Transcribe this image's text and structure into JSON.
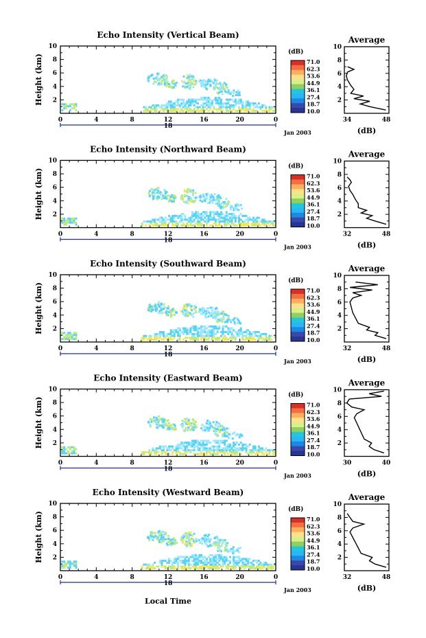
{
  "figure": {
    "x_axis_title": "Local Time",
    "date_label": "Jan 2003",
    "avg_title": "Average",
    "avg_unit": "(dB)",
    "colorbar_unit": "(dB)",
    "colorbar_ticks": [
      "71.0",
      "62.3",
      "53.6",
      "44.9",
      "36.1",
      "27.4",
      "18.7",
      "10.0"
    ],
    "colorbar_colors": [
      "#d73027",
      "#f46d43",
      "#fdae61",
      "#fee08b",
      "#d9ef8b",
      "#91cf60",
      "#26c6da",
      "#29b6f6",
      "#1e88e5",
      "#3949ab",
      "#283593"
    ],
    "echo_colors": {
      "low": "#9be7ff",
      "mid": "#5ad2f0",
      "green": "#b8e986",
      "yellow": "#f2e85a"
    }
  },
  "chart_data": [
    {
      "type": "heatmap",
      "title": "Echo Intensity (Vertical Beam)",
      "ylabel": "Height (km)",
      "xlim": [
        0,
        24
      ],
      "ylim": [
        0,
        10
      ],
      "x_ticks": [
        "0",
        "4",
        "8",
        "12",
        "16",
        "20",
        "0"
      ],
      "y_ticks": [
        "2",
        "4",
        "6",
        "8",
        "10"
      ],
      "day_label": "18",
      "clim": [
        10.0,
        71.0
      ],
      "average": {
        "xlim": [
          34,
          48
        ],
        "x_ticks": [
          "34",
          "48"
        ],
        "profile": [
          [
            47,
            0.5
          ],
          [
            42,
            1
          ],
          [
            39,
            1.4
          ],
          [
            42,
            1.8
          ],
          [
            37,
            2.2
          ],
          [
            40,
            2.6
          ],
          [
            36,
            3
          ],
          [
            37,
            3.6
          ],
          [
            36,
            4.2
          ],
          [
            35,
            5
          ],
          [
            34.6,
            5.6
          ],
          [
            35,
            6.2
          ],
          [
            37,
            6.6
          ],
          [
            35,
            7
          ]
        ]
      }
    },
    {
      "type": "heatmap",
      "title": "Echo Intensity (Northward Beam)",
      "ylabel": "Height (km)",
      "xlim": [
        0,
        24
      ],
      "ylim": [
        0,
        10
      ],
      "x_ticks": [
        "0",
        "4",
        "8",
        "12",
        "16",
        "20",
        "0"
      ],
      "y_ticks": [
        "2",
        "4",
        "6",
        "8",
        "10"
      ],
      "day_label": "18",
      "clim": [
        10.0,
        71.0
      ],
      "average": {
        "xlim": [
          32,
          48
        ],
        "x_ticks": [
          "32",
          "48"
        ],
        "profile": [
          [
            47,
            0.5
          ],
          [
            43,
            1
          ],
          [
            40,
            1.4
          ],
          [
            42,
            1.8
          ],
          [
            38,
            2.2
          ],
          [
            40,
            2.6
          ],
          [
            37,
            3
          ],
          [
            37,
            3.6
          ],
          [
            36,
            4.2
          ],
          [
            35,
            5
          ],
          [
            34,
            5.6
          ],
          [
            33.5,
            6.2
          ],
          [
            34.5,
            6.8
          ],
          [
            34,
            7.2
          ],
          [
            33,
            7.6
          ]
        ]
      }
    },
    {
      "type": "heatmap",
      "title": "Echo Intensity (Southward Beam)",
      "ylabel": "Height (km)",
      "xlim": [
        0,
        24
      ],
      "ylim": [
        0,
        10
      ],
      "x_ticks": [
        "0",
        "4",
        "8",
        "12",
        "16",
        "20",
        "0"
      ],
      "y_ticks": [
        "2",
        "4",
        "6",
        "8",
        "10"
      ],
      "day_label": "18",
      "clim": [
        10.0,
        71.0
      ],
      "average": {
        "xlim": [
          32,
          48
        ],
        "x_ticks": [
          "32",
          "48"
        ],
        "profile": [
          [
            47,
            0.5
          ],
          [
            43,
            1
          ],
          [
            44,
            1.4
          ],
          [
            40,
            1.8
          ],
          [
            41,
            2.2
          ],
          [
            37,
            2.8
          ],
          [
            36,
            3.6
          ],
          [
            35,
            4.4
          ],
          [
            34.5,
            5.2
          ],
          [
            34,
            6
          ],
          [
            35,
            6.6
          ],
          [
            38,
            7
          ],
          [
            35,
            7.4
          ],
          [
            42,
            7.8
          ],
          [
            34,
            8.2
          ],
          [
            44,
            8.6
          ],
          [
            36,
            9
          ]
        ]
      }
    },
    {
      "type": "heatmap",
      "title": "Echo Intensity (Eastward Beam)",
      "ylabel": "Height (km)",
      "xlim": [
        0,
        24
      ],
      "ylim": [
        0,
        10
      ],
      "x_ticks": [
        "0",
        "4",
        "8",
        "12",
        "16",
        "20",
        "0"
      ],
      "y_ticks": [
        "2",
        "4",
        "6",
        "8",
        "10"
      ],
      "day_label": "18",
      "clim": [
        10.0,
        71.0
      ],
      "average": {
        "xlim": [
          30,
          48
        ],
        "x_ticks": [
          "30",
          "40"
        ],
        "profile": [
          [
            46,
            0.5
          ],
          [
            42,
            1
          ],
          [
            40,
            1.5
          ],
          [
            41,
            2
          ],
          [
            38,
            2.6
          ],
          [
            37,
            3.4
          ],
          [
            36,
            4.2
          ],
          [
            35,
            5
          ],
          [
            34,
            5.8
          ],
          [
            35,
            6.4
          ],
          [
            38,
            7
          ],
          [
            33,
            7.4
          ],
          [
            31,
            8
          ],
          [
            32,
            8.6
          ],
          [
            45,
            9
          ],
          [
            40,
            9.4
          ],
          [
            46,
            9.8
          ]
        ]
      }
    },
    {
      "type": "heatmap",
      "title": "Echo Intensity (Westward Beam)",
      "ylabel": "Height (km)",
      "xlim": [
        0,
        24
      ],
      "ylim": [
        0,
        10
      ],
      "x_ticks": [
        "0",
        "4",
        "8",
        "12",
        "16",
        "20",
        "0"
      ],
      "y_ticks": [
        "2",
        "4",
        "6",
        "8",
        "10"
      ],
      "day_label": "18",
      "clim": [
        10.0,
        71.0
      ],
      "average": {
        "xlim": [
          32,
          48
        ],
        "x_ticks": [
          "32",
          "48"
        ],
        "profile": [
          [
            47,
            0.5
          ],
          [
            43,
            1
          ],
          [
            41,
            1.5
          ],
          [
            42,
            2
          ],
          [
            38,
            2.6
          ],
          [
            37,
            3.4
          ],
          [
            36,
            4.2
          ],
          [
            35,
            5
          ],
          [
            34,
            5.8
          ],
          [
            35,
            6.4
          ],
          [
            39,
            7
          ],
          [
            35,
            7.4
          ],
          [
            34,
            8
          ],
          [
            33,
            8.6
          ]
        ]
      }
    }
  ]
}
